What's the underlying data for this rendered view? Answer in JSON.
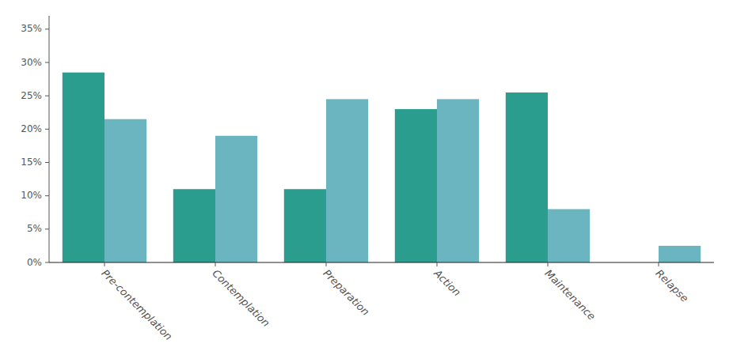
{
  "chart_data": {
    "type": "bar",
    "categories": [
      "Pre-contemplation",
      "Contemplation",
      "Preparation",
      "Action",
      "Maintenance",
      "Relapse"
    ],
    "series": [
      {
        "color": "#2a9d8f",
        "values": [
          28.5,
          11.0,
          11.0,
          23.0,
          25.5,
          0.0
        ]
      },
      {
        "color": "#6ab5bf",
        "values": [
          21.5,
          19.0,
          24.5,
          24.5,
          8.0,
          2.5
        ]
      }
    ],
    "ylim": [
      0,
      37
    ],
    "yticks": [
      {
        "value": 0,
        "label": "0%"
      },
      {
        "value": 5,
        "label": "5%"
      },
      {
        "value": 10,
        "label": "10%"
      },
      {
        "value": 15,
        "label": "15%"
      },
      {
        "value": 20,
        "label": "20%"
      },
      {
        "value": 25,
        "label": "25%"
      },
      {
        "value": 30,
        "label": "30%"
      },
      {
        "value": 35,
        "label": "35%"
      }
    ],
    "grid": false
  }
}
